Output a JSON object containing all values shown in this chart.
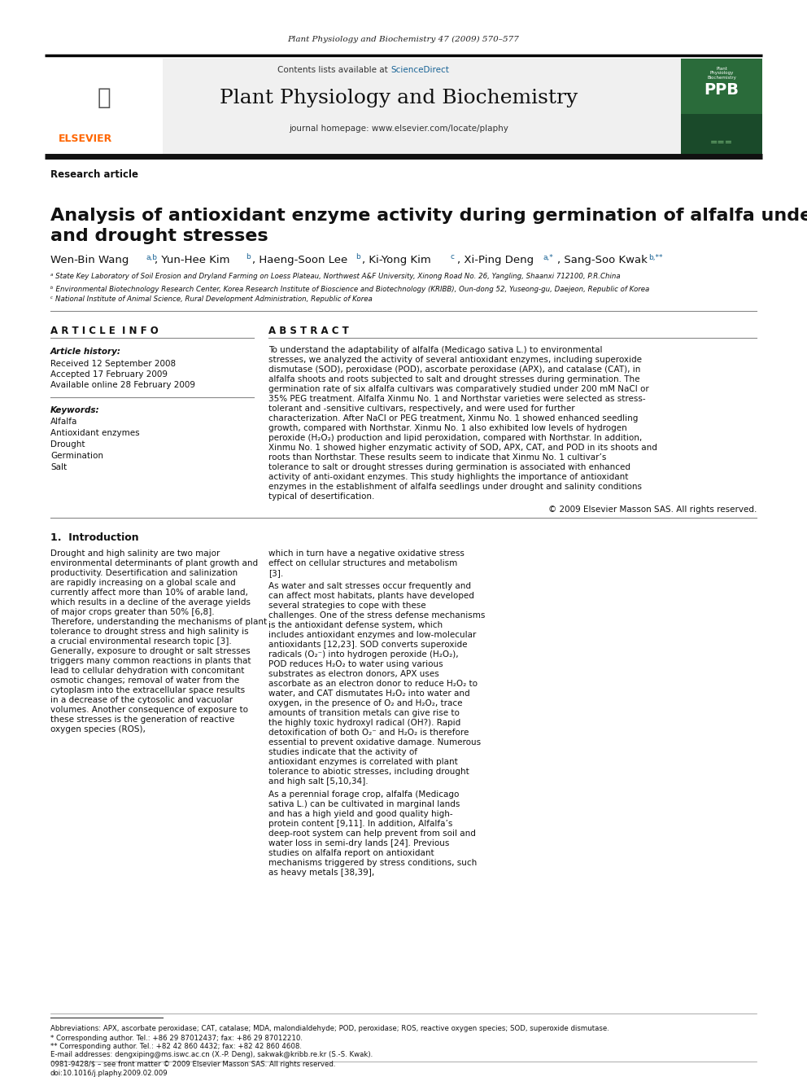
{
  "journal_ref": "Plant Physiology and Biochemistry 47 (2009) 570–577",
  "journal_name": "Plant Physiology and Biochemistry",
  "journal_url": "journal homepage: www.elsevier.com/locate/plaphy",
  "contents_text": "Contents lists available at ",
  "sciencedirect": "ScienceDirect",
  "section_label": "Research article",
  "title": "Analysis of antioxidant enzyme activity during germination of alfalfa under salt\nand drought stresses",
  "authors": "Wen-Bin Wang",
  "authors_sups": [
    "a,b",
    "b",
    "b",
    "c",
    "a,*",
    "b,**"
  ],
  "author_names": [
    "Wen-Bin Wang",
    "Yun-Hee Kim",
    "Haeng-Soon Lee",
    "Ki-Yong Kim",
    "Xi-Ping Deng",
    "Sang-Soo Kwak"
  ],
  "affil_a": "ᵃ State Key Laboratory of Soil Erosion and Dryland Farming on Loess Plateau, Northwest A&F University, Xinong Road No. 26, Yangling, Shaanxi 712100, P.R.China",
  "affil_b": "ᵇ Environmental Biotechnology Research Center, Korea Research Institute of Bioscience and Biotechnology (KRIBB), Oun-dong 52, Yuseong-gu, Daejeon, Republic of Korea",
  "affil_c": "ᶜ National Institute of Animal Science, Rural Development Administration, Republic of Korea",
  "article_info_header": "A R T I C L E  I N F O",
  "article_history_label": "Article history:",
  "received": "Received 12 September 2008",
  "accepted": "Accepted 17 February 2009",
  "available": "Available online 28 February 2009",
  "keywords_label": "Keywords:",
  "keywords": [
    "Alfalfa",
    "Antioxidant enzymes",
    "Drought",
    "Germination",
    "Salt"
  ],
  "abstract_header": "A B S T R A C T",
  "abstract_text": "To understand the adaptability of alfalfa (Medicago sativa L.) to environmental stresses, we analyzed the activity of several antioxidant enzymes, including superoxide dismutase (SOD), peroxidase (POD), ascorbate peroxidase (APX), and catalase (CAT), in alfalfa shoots and roots subjected to salt and drought stresses during germination. The germination rate of six alfalfa cultivars was comparatively studied under 200 mM NaCl or 35% PEG treatment. Alfalfa Xinmu No. 1 and Northstar varieties were selected as stress-tolerant and -sensitive cultivars, respectively, and were used for further characterization. After NaCl or PEG treatment, Xinmu No. 1 showed enhanced seedling growth, compared with Northstar. Xinmu No. 1 also exhibited low levels of hydrogen peroxide (H₂O₂) production and lipid peroxidation, compared with Northstar. In addition, Xinmu No. 1 showed higher enzymatic activity of SOD, APX, CAT, and POD in its shoots and roots than Northstar. These results seem to indicate that Xinmu No. 1 cultivar’s tolerance to salt or drought stresses during germination is associated with enhanced activity of anti-oxidant enzymes. This study highlights the importance of antioxidant enzymes in the establishment of alfalfa seedlings under drought and salinity conditions typical of desertification.",
  "copyright": "© 2009 Elsevier Masson SAS. All rights reserved.",
  "intro_header": "1.  Introduction",
  "intro_text_left": "Drought and high salinity are two major environmental determinants of plant growth and productivity. Desertification and salinization are rapidly increasing on a global scale and currently affect more than 10% of arable land, which results in a decline of the average yields of major crops greater than 50% [6,8]. Therefore, understanding the mechanisms of plant tolerance to drought stress and high salinity is a crucial environmental research topic [3]. Generally, exposure to drought or salt stresses triggers many common reactions in plants that lead to cellular dehydration with concomitant osmotic changes; removal of water from the cytoplasm into the extracellular space results in a decrease of the cytosolic and vacuolar volumes. Another consequence of exposure to these stresses is the generation of reactive oxygen species (ROS),",
  "intro_text_right": "which in turn have a negative oxidative stress effect on cellular structures and metabolism [3].\n  As water and salt stresses occur frequently and can affect most habitats, plants have developed several strategies to cope with these challenges. One of the stress defense mechanisms is the antioxidant defense system, which includes antioxidant enzymes and low-molecular antioxidants [12,23]. SOD converts superoxide radicals (O₂⁻) into hydrogen peroxide (H₂O₂), POD reduces H₂O₂ to water using various substrates as electron donors, APX uses ascorbate as an electron donor to reduce H₂O₂ to water, and CAT dismutates H₂O₂ into water and oxygen, in the presence of O₂ and H₂O₂, trace amounts of transition metals can give rise to the highly toxic hydroxyl radical (OH?). Rapid detoxification of both O₂⁻ and H₂O₂ is therefore essential to prevent oxidative damage. Numerous studies indicate that the activity of antioxidant enzymes is correlated with plant tolerance to abiotic stresses, including drought and high salt [5,10,34].\n  As a perennial forage crop, alfalfa (Medicago sativa L.) can be cultivated in marginal lands and has a high yield and good quality high-protein content [9,11]. In addition, Alfalfa’s deep-root system can help prevent from soil and water loss in semi-dry lands [24]. Previous studies on alfalfa report on antioxidant mechanisms triggered by stress conditions, such as heavy metals [38,39],",
  "footnote_abbrev": "Abbreviations: APX, ascorbate peroxidase; CAT, catalase; MDA, malondialdehyde; POD, peroxidase; ROS, reactive oxygen species; SOD, superoxide dismutase.",
  "footnote_corr1": "* Corresponding author. Tel.: +86 29 87012437; fax: +86 29 87012210.",
  "footnote_corr2": "** Corresponding author. Tel.: +82 42 860 4432; fax: +82 42 860 4608.",
  "footnote_email": "E-mail addresses: dengxiping@ms.iswc.ac.cn (X.-P. Deng), sakwak@kribb.re.kr (S.-S. Kwak).",
  "bottom_text": "0981-9428/$ – see front matter © 2009 Elsevier Masson SAS. All rights reserved.\ndoi:10.1016/j.plaphy.2009.02.009",
  "bg_color": "#ffffff",
  "header_bg": "#f0f0f0",
  "elsevier_orange": "#FF6600",
  "sciencedirect_blue": "#1a6496",
  "black": "#000000",
  "dark_gray": "#333333",
  "light_gray": "#e8e8e8"
}
